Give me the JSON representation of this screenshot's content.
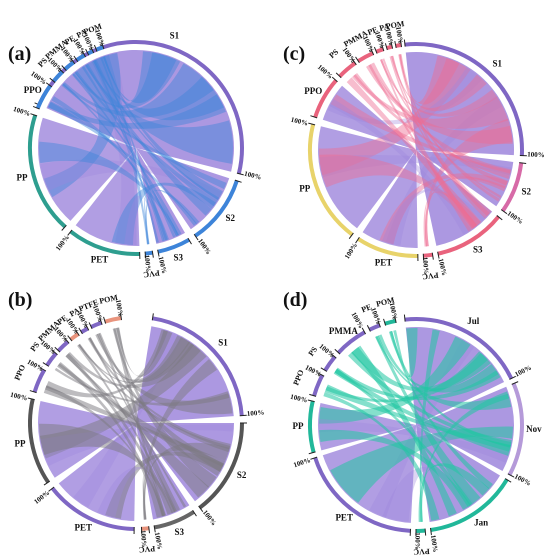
{
  "colors": {
    "group_fill": "#9d86dc",
    "group_ring": "#7f67c4",
    "tick_stroke": "#222222",
    "track_white": "#ffffff"
  },
  "percent_label": "100%",
  "panels": [
    {
      "letter": "(a)",
      "ribbon_color": "#3d84d9",
      "ribbon_alpha": 0.45,
      "segments": [
        {
          "label": "S1",
          "from": -66,
          "to": 104,
          "ring": "#7f67c4",
          "group": true
        },
        {
          "label": "S2",
          "from": 108,
          "to": 146,
          "ring": "#3d84d9",
          "group": true
        },
        {
          "label": "S3",
          "from": 150,
          "to": 168,
          "ring": "#3d84d9",
          "group": true
        },
        {
          "label": "PVC",
          "from": 171,
          "to": 175,
          "ring": "#3d84d9"
        },
        {
          "label": "PET",
          "from": 178,
          "to": 218,
          "ring": "#2e9e8f"
        },
        {
          "label": "PP",
          "from": 222,
          "to": 288,
          "ring": "#2e9e8f"
        },
        {
          "label": "PPO",
          "from": 292,
          "to": 306,
          "ring": "#3d84d9"
        },
        {
          "label": "PS",
          "from": 309,
          "to": 316,
          "ring": "#3d84d9"
        },
        {
          "label": "PMMA",
          "from": 318,
          "to": 324,
          "ring": "#3d84d9"
        },
        {
          "label": "PE",
          "from": 326,
          "to": 331,
          "ring": "#3d84d9"
        },
        {
          "label": "PA",
          "from": 333,
          "to": 336,
          "ring": "#3d84d9"
        },
        {
          "label": "POM",
          "from": 338,
          "to": 342,
          "ring": "#3d84d9"
        }
      ]
    },
    {
      "letter": "(c)",
      "ribbon_color": "#ee6c93",
      "ribbon_alpha": 0.45,
      "segments": [
        {
          "label": "S1",
          "from": -6,
          "to": 93,
          "ring": "#7f67c4",
          "group": true
        },
        {
          "label": "S2",
          "from": 97,
          "to": 125,
          "ring": "#d76aa7",
          "group": true
        },
        {
          "label": "S3",
          "from": 129,
          "to": 168,
          "ring": "#e9637d",
          "group": true
        },
        {
          "label": "PVC",
          "from": 171,
          "to": 176,
          "ring": "#e9637d"
        },
        {
          "label": "PET",
          "from": 179,
          "to": 213,
          "ring": "#e8d36a"
        },
        {
          "label": "PP",
          "from": 217,
          "to": 284,
          "ring": "#e8d36a"
        },
        {
          "label": "PPO",
          "from": 288,
          "to": 311,
          "ring": "#e9637d"
        },
        {
          "label": "PS",
          "from": 314,
          "to": 325,
          "ring": "#e9637d"
        },
        {
          "label": "PMMA",
          "from": 327,
          "to": 336,
          "ring": "#e9637d"
        },
        {
          "label": "PE",
          "from": 338,
          "to": 342,
          "ring": "#e9637d"
        },
        {
          "label": "PA",
          "from": 344,
          "to": 347,
          "ring": "#e9637d"
        },
        {
          "label": "POM",
          "from": 349,
          "to": 352,
          "ring": "#e9637d"
        }
      ]
    },
    {
      "letter": "(b)",
      "ribbon_color": "#7c7a80",
      "ribbon_alpha": 0.5,
      "segments": [
        {
          "label": "S1",
          "from": 9,
          "to": 86,
          "ring": "#7f67c4",
          "group": true
        },
        {
          "label": "S2",
          "from": 90,
          "to": 143,
          "ring": "#555555",
          "group": true
        },
        {
          "label": "S3",
          "from": 147,
          "to": 170,
          "ring": "#666666",
          "group": true
        },
        {
          "label": "PVC",
          "from": 173,
          "to": 177,
          "ring": "#e9947d"
        },
        {
          "label": "PET",
          "from": 181,
          "to": 232,
          "ring": "#7f67c4"
        },
        {
          "label": "PP",
          "from": 236,
          "to": 283,
          "ring": "#555555"
        },
        {
          "label": "PPO",
          "from": 287,
          "to": 300,
          "ring": "#7f67c4"
        },
        {
          "label": "PS",
          "from": 303,
          "to": 311,
          "ring": "#7f67c4"
        },
        {
          "label": "PMMA",
          "from": 313,
          "to": 320,
          "ring": "#7f67c4"
        },
        {
          "label": "PE",
          "from": 322,
          "to": 327,
          "ring": "#e9947d"
        },
        {
          "label": "PA",
          "from": 329,
          "to": 333,
          "ring": "#7f67c4"
        },
        {
          "label": "PTFE",
          "from": 335,
          "to": 341,
          "ring": "#7f67c4"
        },
        {
          "label": "POM",
          "from": 343,
          "to": 352,
          "ring": "#e9947d"
        }
      ]
    },
    {
      "letter": "(d)",
      "ribbon_color": "#21c7a2",
      "ribbon_alpha": 0.55,
      "segments": [
        {
          "label": "Jul",
          "from": -6,
          "to": 64,
          "ring": "#7f67c4",
          "group": true
        },
        {
          "label": "Nov",
          "from": 67,
          "to": 118,
          "ring": "#b59ad9",
          "group": true
        },
        {
          "label": "Jan",
          "from": 121,
          "to": 172,
          "ring": "#21b89a",
          "group": true
        },
        {
          "label": "PVC",
          "from": 175,
          "to": 180,
          "ring": "#21b89a"
        },
        {
          "label": "PET",
          "from": 183,
          "to": 252,
          "ring": "#7f67c4"
        },
        {
          "label": "PP",
          "from": 255,
          "to": 283,
          "ring": "#21b89a"
        },
        {
          "label": "PPO",
          "from": 286,
          "to": 298,
          "ring": "#7f67c4"
        },
        {
          "label": "PS",
          "from": 301,
          "to": 310,
          "ring": "#7f67c4"
        },
        {
          "label": "PMMA",
          "from": 313,
          "to": 331,
          "ring": "#7f67c4"
        },
        {
          "label": "PE",
          "from": 334,
          "to": 340,
          "ring": "#7f67c4"
        },
        {
          "label": "POM",
          "from": 343,
          "to": 349,
          "ring": "#21b89a"
        }
      ]
    }
  ]
}
